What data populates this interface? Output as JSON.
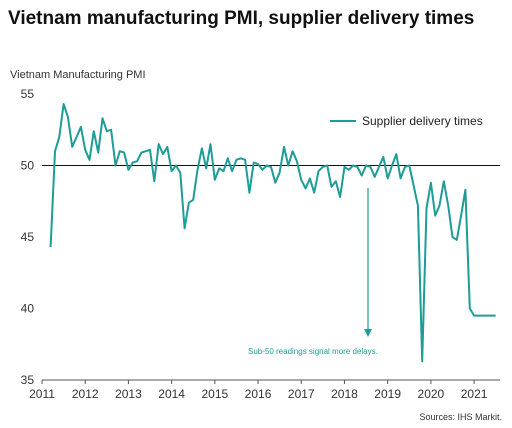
{
  "title": "Vietnam manufacturing PMI, supplier delivery times",
  "y_axis_label": "Vietnam  Manufacturing  PMI",
  "source": "Sources: IHS Markit.",
  "annotation": "Sub-50 readings signal more delays.",
  "line_color": "#1e9c96",
  "chart_data": {
    "type": "line",
    "title": "Vietnam manufacturing PMI, supplier delivery times",
    "ylabel": "Vietnam  Manufacturing  PMI",
    "xlabel": "",
    "ylim": [
      35,
      55
    ],
    "xlim": [
      2011.0,
      2021.6
    ],
    "y_ticks": [
      35,
      40,
      45,
      50,
      55
    ],
    "x_ticks": [
      2011,
      2012,
      2013,
      2014,
      2015,
      2016,
      2017,
      2018,
      2019,
      2020,
      2021
    ],
    "reference_line": 50,
    "legend_position": "top-right",
    "grid": false,
    "series": [
      {
        "name": "Supplier delivery times",
        "color": "#1e9c96",
        "x": [
          2011.2,
          2011.3,
          2011.4,
          2011.5,
          2011.6,
          2011.7,
          2011.8,
          2011.9,
          2012.0,
          2012.1,
          2012.2,
          2012.3,
          2012.4,
          2012.5,
          2012.6,
          2012.7,
          2012.8,
          2012.9,
          2013.0,
          2013.1,
          2013.2,
          2013.3,
          2013.4,
          2013.5,
          2013.6,
          2013.7,
          2013.8,
          2013.9,
          2014.0,
          2014.1,
          2014.2,
          2014.3,
          2014.4,
          2014.5,
          2014.6,
          2014.7,
          2014.8,
          2014.9,
          2015.0,
          2015.1,
          2015.2,
          2015.3,
          2015.4,
          2015.5,
          2015.6,
          2015.7,
          2015.8,
          2015.9,
          2016.0,
          2016.1,
          2016.2,
          2016.3,
          2016.4,
          2016.5,
          2016.6,
          2016.7,
          2016.8,
          2016.9,
          2017.0,
          2017.1,
          2017.2,
          2017.3,
          2017.4,
          2017.5,
          2017.6,
          2017.7,
          2017.8,
          2017.9,
          2018.0,
          2018.1,
          2018.2,
          2018.3,
          2018.4,
          2018.5,
          2018.6,
          2018.7,
          2018.8,
          2018.9,
          2019.0,
          2019.1,
          2019.2,
          2019.3,
          2019.4,
          2019.5,
          2019.6,
          2019.7,
          2019.8,
          2019.9,
          2020.0,
          2020.1,
          2020.2,
          2020.3,
          2020.4,
          2020.5,
          2020.6,
          2020.7,
          2020.8,
          2020.9,
          2021.0,
          2021.1,
          2021.2,
          2021.3,
          2021.4,
          2021.5
        ],
        "values": [
          44.3,
          51.0,
          52.0,
          54.3,
          53.4,
          51.3,
          52.0,
          52.7,
          51.1,
          50.4,
          52.4,
          50.9,
          53.3,
          52.4,
          52.5,
          50.0,
          51.0,
          50.9,
          49.7,
          50.2,
          50.3,
          50.9,
          51.0,
          51.1,
          48.9,
          51.5,
          50.8,
          51.3,
          49.6,
          50.0,
          49.5,
          45.6,
          47.4,
          47.6,
          49.7,
          51.2,
          49.8,
          51.5,
          49.0,
          49.8,
          49.6,
          50.5,
          49.6,
          50.4,
          50.5,
          50.4,
          48.1,
          50.2,
          50.1,
          49.7,
          50.0,
          49.9,
          48.8,
          49.5,
          51.3,
          50.0,
          51.0,
          50.3,
          49.0,
          48.4,
          49.1,
          48.1,
          49.6,
          49.9,
          50.0,
          48.5,
          48.9,
          47.8,
          49.9,
          49.7,
          50.0,
          49.9,
          49.3,
          50.0,
          49.9,
          49.2,
          49.9,
          50.6,
          49.1,
          50.0,
          50.8,
          49.1,
          49.9,
          50.0,
          48.6,
          47.2,
          36.3,
          47.0,
          48.8,
          46.5,
          47.2,
          48.9,
          47.2,
          45.0,
          44.8,
          46.5,
          48.3,
          40.0,
          39.5,
          39.5,
          39.5,
          39.5,
          39.5,
          39.5
        ]
      }
    ]
  }
}
